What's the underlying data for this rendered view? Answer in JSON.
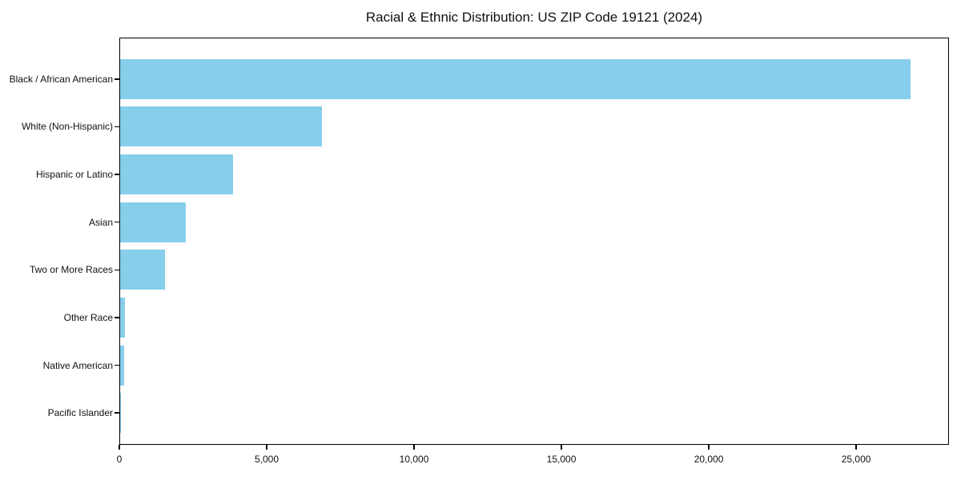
{
  "chart_data": {
    "type": "bar",
    "orientation": "horizontal",
    "title": "Racial & Ethnic Distribution: US ZIP Code 19121 (2024)",
    "xlabel": "",
    "ylabel": "",
    "categories": [
      "Black / African American",
      "White (Non-Hispanic)",
      "Hispanic or Latino",
      "Asian",
      "Two or More Races",
      "Other Race",
      "Native American",
      "Pacific Islander"
    ],
    "values": [
      26820,
      6860,
      3820,
      2240,
      1530,
      160,
      125,
      25
    ],
    "xlim": [
      0,
      28150
    ],
    "x_ticks": [
      0,
      5000,
      10000,
      15000,
      20000,
      25000
    ],
    "x_tick_labels": [
      "0",
      "5,000",
      "10,000",
      "15,000",
      "20,000",
      "25,000"
    ],
    "grid": false,
    "legend": null,
    "colors": {
      "bar": "#87CEEB",
      "spine": "#000000",
      "text": "#111111",
      "background": "#ffffff"
    }
  }
}
